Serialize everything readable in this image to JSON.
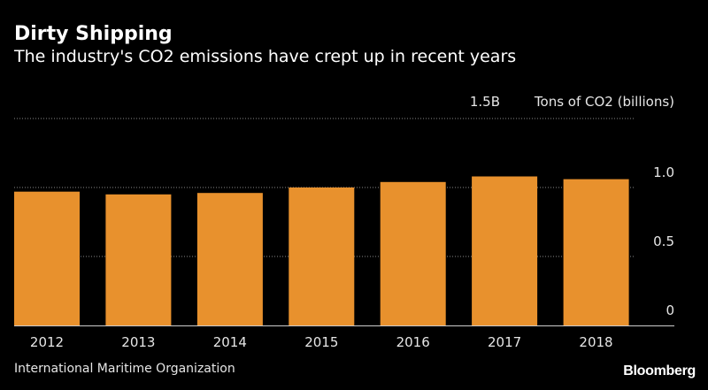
{
  "header": {
    "title": "Dirty Shipping",
    "subtitle": "The industry's CO2 emissions have crept up in recent years"
  },
  "footer": {
    "source": "International Maritime Organization",
    "brand": "Bloomberg"
  },
  "colors": {
    "background": "#000000",
    "bar": "#e8912d",
    "grid": "#888888",
    "text": "#e6e6e6"
  },
  "chart_data": {
    "type": "bar",
    "title": "Dirty Shipping",
    "subtitle": "The industry's CO2 emissions have crept up in recent years",
    "categories": [
      "2012",
      "2013",
      "2014",
      "2015",
      "2016",
      "2017",
      "2018"
    ],
    "values": [
      0.97,
      0.95,
      0.96,
      1.0,
      1.04,
      1.08,
      1.06
    ],
    "ylim": [
      0,
      1.5
    ],
    "yticks": [
      {
        "value": 0,
        "label": "0"
      },
      {
        "value": 0.5,
        "label": "0.5"
      },
      {
        "value": 1.0,
        "label": "1.0"
      },
      {
        "value": 1.5,
        "label": "1.5B"
      }
    ],
    "ylabel": "Tons of CO2 (billions)",
    "grid": true,
    "y_axis_side": "right"
  }
}
